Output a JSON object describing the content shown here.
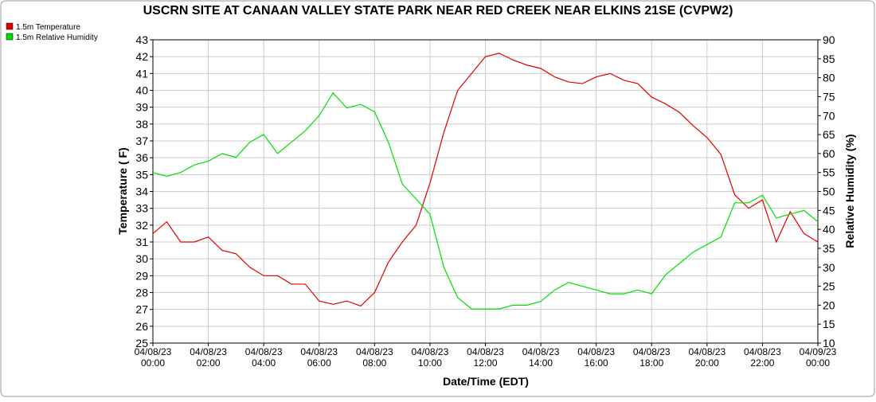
{
  "chart_data": {
    "type": "line",
    "title": "USCRN SITE AT CANAAN VALLEY STATE PARK NEAR RED CREEK NEAR ELKINS 21SE (CVPW2)",
    "xlabel": "Date/Time (EDT)",
    "ylabel": "Temperature ( F)",
    "y2label": "Relative Humidity (%)",
    "x": [
      0,
      0.5,
      1,
      1.5,
      2,
      2.5,
      3,
      3.5,
      4,
      4.5,
      5,
      5.5,
      6,
      6.5,
      7,
      7.5,
      8,
      8.5,
      9,
      9.5,
      10,
      10.5,
      11,
      11.5,
      12,
      12.5,
      13,
      13.5,
      14,
      14.5,
      15,
      15.5,
      16,
      16.5,
      17,
      17.5,
      18,
      18.5,
      19,
      19.5,
      20,
      20.5,
      21,
      21.5,
      22,
      22.5,
      23,
      23.5,
      24
    ],
    "xlim": [
      0,
      24
    ],
    "xticks": [
      {
        "value": 0,
        "label": "04/08/23 00:00"
      },
      {
        "value": 2,
        "label": "04/08/23 02:00"
      },
      {
        "value": 4,
        "label": "04/08/23 04:00"
      },
      {
        "value": 6,
        "label": "04/08/23 06:00"
      },
      {
        "value": 8,
        "label": "04/08/23 08:00"
      },
      {
        "value": 10,
        "label": "04/08/23 10:00"
      },
      {
        "value": 12,
        "label": "04/08/23 12:00"
      },
      {
        "value": 14,
        "label": "04/08/23 14:00"
      },
      {
        "value": 16,
        "label": "04/08/23 16:00"
      },
      {
        "value": 18,
        "label": "04/08/23 18:00"
      },
      {
        "value": 20,
        "label": "04/08/23 20:00"
      },
      {
        "value": 22,
        "label": "04/08/23 22:00"
      },
      {
        "value": 24,
        "label": "04/09/23 00:00"
      }
    ],
    "ylim": [
      25,
      43
    ],
    "yticks": [
      25,
      26,
      27,
      28,
      29,
      30,
      31,
      32,
      33,
      34,
      35,
      36,
      37,
      38,
      39,
      40,
      41,
      42,
      43
    ],
    "y2lim": [
      10,
      90
    ],
    "y2ticks": [
      10,
      15,
      20,
      25,
      30,
      35,
      40,
      45,
      50,
      55,
      60,
      65,
      70,
      75,
      80,
      85,
      90
    ],
    "grid": true,
    "legend": "top-left",
    "series": [
      {
        "name": "1.5m Temperature",
        "color": "#e00000",
        "values": [
          31.5,
          32.2,
          31.0,
          31.0,
          31.3,
          30.5,
          30.3,
          29.5,
          29.0,
          29.0,
          28.5,
          28.5,
          27.5,
          27.3,
          27.5,
          27.2,
          28.0,
          29.8,
          31.0,
          32.0,
          34.5,
          37.5,
          40.0,
          41.0,
          42.0,
          42.2,
          41.8,
          41.5,
          41.3,
          40.8,
          40.5,
          40.4,
          40.8,
          41.0,
          40.6,
          40.4,
          39.6,
          39.2,
          38.7,
          37.9,
          37.2,
          36.2,
          33.8,
          33.0,
          33.5,
          31.0,
          32.8,
          31.5,
          31.0
        ]
      },
      {
        "name": "1.5m Relative Humidity",
        "color": "#00e000",
        "axis": "y2",
        "values": [
          55,
          54,
          55,
          57,
          58,
          60,
          59,
          63,
          65,
          60,
          63,
          66,
          70,
          76,
          72,
          73,
          71,
          63,
          52,
          48,
          44,
          30,
          22,
          19,
          19,
          19,
          20,
          20,
          21,
          24,
          26,
          25,
          24,
          23,
          23,
          24,
          23,
          28,
          31,
          34,
          36,
          38,
          47,
          47,
          49,
          43,
          44,
          45,
          42
        ]
      }
    ]
  }
}
